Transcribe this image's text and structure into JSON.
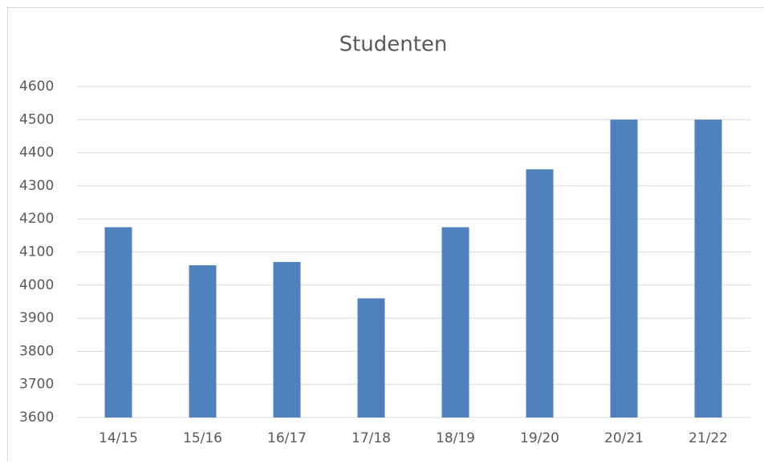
{
  "chart_data": {
    "type": "bar",
    "title": "Studenten",
    "categories": [
      "14/15",
      "15/16",
      "16/17",
      "17/18",
      "18/19",
      "19/20",
      "20/21",
      "21/22"
    ],
    "values": [
      4175,
      4060,
      4070,
      3960,
      4175,
      4350,
      4500,
      4500
    ],
    "color": "#4f81bd",
    "ylim": [
      3600,
      4600
    ],
    "yticks": [
      3600,
      3700,
      3800,
      3900,
      4000,
      4100,
      4200,
      4300,
      4400,
      4500,
      4600
    ],
    "grid": true
  }
}
